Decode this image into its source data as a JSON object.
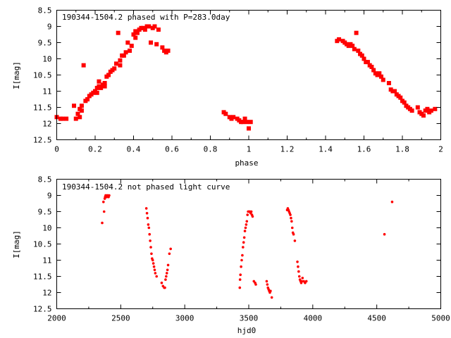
{
  "colors": {
    "point": "#ff0000",
    "axis": "#000000",
    "background": "#ffffff"
  },
  "chart_data": [
    {
      "type": "scatter",
      "title": "190344-1504.2 phased with P=283.0day",
      "xlabel": "phase",
      "ylabel": "I[mag]",
      "xlim": [
        0,
        2
      ],
      "ylim": [
        8.5,
        12.5
      ],
      "y_inverted": true,
      "grid": false,
      "marker": "filled-square",
      "xticks": [
        "0",
        "0.2",
        "0.4",
        "0.6",
        "0.8",
        "1",
        "1.2",
        "1.4",
        "1.6",
        "1.8",
        "2"
      ],
      "yticks": [
        "8.5",
        "9",
        "9.5",
        "10",
        "10.5",
        "11",
        "11.5",
        "12",
        "12.5"
      ],
      "series": [
        {
          "x": [
            0.0,
            0.02,
            0.03,
            0.05,
            0.09,
            0.1,
            0.11,
            0.12,
            0.12,
            0.13,
            0.13,
            0.14,
            0.15,
            0.16,
            0.17,
            0.18,
            0.19,
            0.2,
            0.21,
            0.21,
            0.22,
            0.22,
            0.23,
            0.24,
            0.25,
            0.25,
            0.26,
            0.27,
            0.28,
            0.29,
            0.3,
            0.31,
            0.32,
            0.33,
            0.33,
            0.34,
            0.35,
            0.36,
            0.37,
            0.38,
            0.39,
            0.4,
            0.41,
            0.41,
            0.42,
            0.43,
            0.44,
            0.45,
            0.46,
            0.47,
            0.48,
            0.49,
            0.5,
            0.51,
            0.52,
            0.53,
            0.55,
            0.56,
            0.57,
            0.58,
            0.87,
            0.88,
            0.9,
            0.91,
            0.92,
            0.94,
            0.95,
            0.96,
            0.97,
            0.98,
            0.99,
            1.0,
            1.01,
            1.46,
            1.47,
            1.49,
            1.5,
            1.51,
            1.52,
            1.53,
            1.54,
            1.55,
            1.56,
            1.57,
            1.58,
            1.59,
            1.6,
            1.61,
            1.62,
            1.63,
            1.64,
            1.65,
            1.66,
            1.67,
            1.68,
            1.69,
            1.7,
            1.73,
            1.74,
            1.75,
            1.76,
            1.77,
            1.78,
            1.79,
            1.8,
            1.81,
            1.82,
            1.83,
            1.84,
            1.85,
            1.88,
            1.89,
            1.9,
            1.91,
            1.92,
            1.93,
            1.94,
            1.95,
            1.97
          ],
          "y": [
            11.8,
            11.85,
            11.85,
            11.85,
            11.45,
            11.85,
            11.7,
            11.55,
            11.8,
            11.6,
            11.45,
            10.2,
            11.3,
            11.25,
            11.15,
            11.1,
            11.05,
            11.0,
            10.9,
            11.05,
            10.85,
            10.7,
            10.9,
            10.8,
            10.75,
            10.85,
            10.55,
            10.5,
            10.4,
            10.35,
            10.3,
            10.15,
            9.2,
            10.05,
            10.2,
            9.9,
            9.9,
            9.8,
            9.5,
            9.75,
            9.6,
            9.25,
            9.15,
            9.35,
            9.2,
            9.1,
            9.05,
            9.05,
            9.1,
            9.0,
            9.0,
            9.5,
            9.05,
            9.0,
            9.55,
            9.1,
            9.65,
            9.75,
            9.8,
            9.75,
            11.65,
            11.7,
            11.8,
            11.85,
            11.8,
            11.85,
            11.9,
            11.95,
            11.95,
            11.85,
            11.95,
            12.15,
            11.95,
            9.45,
            9.4,
            9.45,
            9.5,
            9.55,
            9.6,
            9.55,
            9.6,
            9.7,
            9.2,
            9.75,
            9.85,
            9.9,
            10.0,
            10.1,
            10.1,
            10.2,
            10.25,
            10.35,
            10.45,
            10.5,
            10.45,
            10.55,
            10.65,
            10.75,
            10.95,
            11.0,
            11.0,
            11.1,
            11.15,
            11.2,
            11.3,
            11.35,
            11.45,
            11.5,
            11.55,
            11.6,
            11.5,
            11.65,
            11.7,
            11.75,
            11.6,
            11.55,
            11.65,
            11.6,
            11.55
          ]
        }
      ]
    },
    {
      "type": "scatter",
      "title": "190344-1504.2 not phased light curve",
      "xlabel": "hjd0",
      "ylabel": "I[mag]",
      "xlim": [
        2000,
        5000
      ],
      "ylim": [
        8.5,
        12.5
      ],
      "y_inverted": true,
      "grid": false,
      "marker": "small-dot",
      "xticks": [
        "2000",
        "2500",
        "3000",
        "3500",
        "4000",
        "4500",
        "5000"
      ],
      "yticks": [
        "8.5",
        "9",
        "9.5",
        "10",
        "10.5",
        "11",
        "11.5",
        "12",
        "12.5"
      ],
      "series": [
        {
          "x": [
            2355,
            2365,
            2370,
            2375,
            2378,
            2382,
            2386,
            2390,
            2395,
            2400,
            2405,
            2410,
            2700,
            2705,
            2710,
            2715,
            2720,
            2725,
            2730,
            2735,
            2740,
            2745,
            2750,
            2755,
            2760,
            2765,
            2770,
            2780,
            2820,
            2830,
            2840,
            2845,
            2850,
            2855,
            2860,
            2865,
            2870,
            2880,
            2890,
            3430,
            3432,
            3435,
            3440,
            3445,
            3450,
            3455,
            3460,
            3465,
            3470,
            3475,
            3480,
            3485,
            3490,
            3495,
            3500,
            3505,
            3510,
            3515,
            3520,
            3525,
            3530,
            3540,
            3550,
            3555,
            3640,
            3645,
            3650,
            3655,
            3660,
            3665,
            3670,
            3680,
            3800,
            3805,
            3810,
            3815,
            3820,
            3825,
            3830,
            3835,
            3840,
            3845,
            3850,
            3860,
            3880,
            3885,
            3890,
            3895,
            3900,
            3905,
            3910,
            3915,
            3920,
            3930,
            3940,
            3950,
            4560,
            4620
          ],
          "y": [
            9.85,
            9.2,
            9.5,
            9.1,
            9.05,
            9.0,
            9.0,
            9.05,
            9.0,
            9.0,
            9.05,
            9.0,
            9.4,
            9.55,
            9.7,
            9.9,
            10.0,
            10.2,
            10.4,
            10.6,
            10.8,
            10.95,
            11.0,
            11.1,
            11.2,
            11.3,
            11.4,
            11.5,
            11.7,
            11.8,
            11.85,
            11.85,
            11.6,
            11.5,
            11.4,
            11.3,
            11.15,
            10.8,
            10.65,
            11.85,
            11.6,
            11.45,
            11.2,
            11.0,
            10.85,
            10.6,
            10.45,
            10.3,
            10.1,
            10.0,
            9.9,
            9.8,
            9.6,
            9.5,
            9.5,
            9.5,
            9.5,
            9.55,
            9.5,
            9.6,
            9.65,
            11.65,
            11.7,
            11.75,
            11.65,
            11.75,
            11.85,
            11.9,
            11.95,
            12.0,
            11.95,
            12.15,
            9.45,
            9.4,
            9.45,
            9.5,
            9.55,
            9.6,
            9.7,
            9.8,
            10.0,
            10.15,
            10.2,
            10.4,
            11.05,
            11.2,
            11.35,
            11.5,
            11.6,
            11.65,
            11.7,
            11.65,
            11.55,
            11.65,
            11.7,
            11.65,
            10.2,
            9.2
          ]
        }
      ]
    }
  ]
}
